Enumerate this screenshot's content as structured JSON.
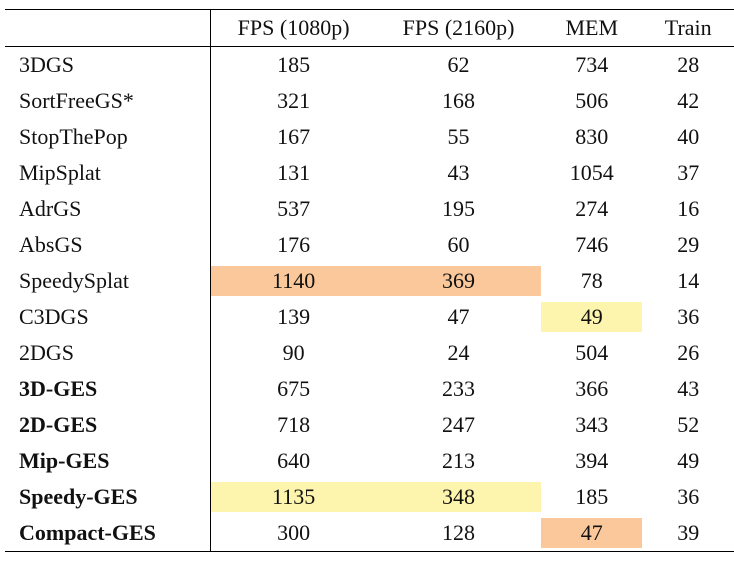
{
  "table": {
    "headers": [
      "",
      "FPS (1080p)",
      "FPS (2160p)",
      "MEM",
      "Train"
    ],
    "rows": [
      {
        "name": "3DGS",
        "values": [
          "185",
          "62",
          "734",
          "28"
        ],
        "bold": false
      },
      {
        "name": "SortFreeGS*",
        "values": [
          "321",
          "168",
          "506",
          "42"
        ],
        "bold": false
      },
      {
        "name": "StopThePop",
        "values": [
          "167",
          "55",
          "830",
          "40"
        ],
        "bold": false
      },
      {
        "name": "MipSplat",
        "values": [
          "131",
          "43",
          "1054",
          "37"
        ],
        "bold": false
      },
      {
        "name": "AdrGS",
        "values": [
          "537",
          "195",
          "274",
          "16"
        ],
        "bold": false
      },
      {
        "name": "AbsGS",
        "values": [
          "176",
          "60",
          "746",
          "29"
        ],
        "bold": false
      },
      {
        "name": "SpeedySplat",
        "values": [
          "1140",
          "369",
          "78",
          "14"
        ],
        "bold": false
      },
      {
        "name": "C3DGS",
        "values": [
          "139",
          "47",
          "49",
          "36"
        ],
        "bold": false
      },
      {
        "name": "2DGS",
        "values": [
          "90",
          "24",
          "504",
          "26"
        ],
        "bold": false
      },
      {
        "name": "3D-GES",
        "values": [
          "675",
          "233",
          "366",
          "43"
        ],
        "bold": true
      },
      {
        "name": "2D-GES",
        "values": [
          "718",
          "247",
          "343",
          "52"
        ],
        "bold": true
      },
      {
        "name": "Mip-GES",
        "values": [
          "640",
          "213",
          "394",
          "49"
        ],
        "bold": true
      },
      {
        "name": "Speedy-GES",
        "values": [
          "1135",
          "348",
          "185",
          "36"
        ],
        "bold": true
      },
      {
        "name": "Compact-GES",
        "values": [
          "300",
          "128",
          "47",
          "39"
        ],
        "bold": true
      }
    ],
    "highlights": {
      "best_color": "#fbc89b",
      "second_color": "#fdf4ad"
    }
  }
}
